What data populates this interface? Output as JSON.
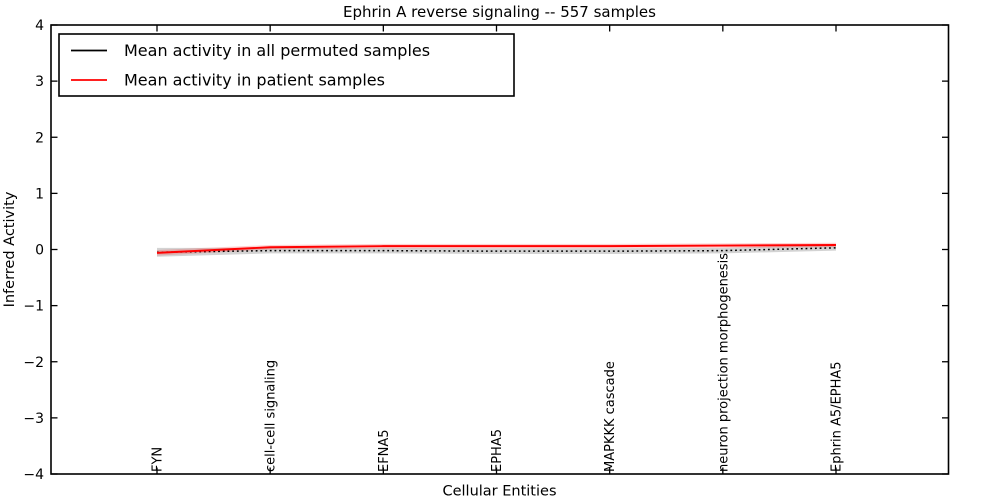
{
  "title": "Ephrin A  reverse signaling -- 557 samples",
  "legend": {
    "entries": [
      {
        "label": "Mean activity in all permuted samples",
        "color": "#000000"
      },
      {
        "label": "Mean activity in patient samples",
        "color": "#ff0000"
      }
    ],
    "position": "upper left"
  },
  "chart_data": {
    "type": "line",
    "title": "Ephrin A  reverse signaling -- 557 samples",
    "xlabel": "Cellular Entities",
    "ylabel": "Inferred Activity",
    "ylim": [
      -4,
      4
    ],
    "yticks": [
      -4,
      -3,
      -2,
      -1,
      0,
      1,
      2,
      3,
      4
    ],
    "grid": false,
    "legend_position": "upper left",
    "categories": [
      "FYN",
      "cell-cell signaling",
      "EFNA5",
      "EPHA5",
      "MAPKKK cascade",
      "neuron projection morphogenesis",
      "Ephrin A5/EPHA5"
    ],
    "series": [
      {
        "name": "Mean activity in all permuted samples",
        "color": "#000000",
        "line_style": "dotted",
        "values": [
          -0.05,
          -0.02,
          -0.02,
          -0.03,
          -0.03,
          -0.02,
          0.03
        ],
        "band_halfwidth": [
          0.08,
          0.05,
          0.05,
          0.05,
          0.05,
          0.05,
          0.05
        ],
        "band_color": "rgba(130,130,130,0.35)"
      },
      {
        "name": "Mean activity in patient samples",
        "color": "#ff0000",
        "line_style": "solid",
        "values": [
          -0.06,
          0.04,
          0.06,
          0.06,
          0.06,
          0.07,
          0.08
        ],
        "band_halfwidth": [
          0.05,
          0.04,
          0.04,
          0.04,
          0.04,
          0.04,
          0.04
        ],
        "band_color": "rgba(255,0,0,0.18)"
      }
    ]
  }
}
